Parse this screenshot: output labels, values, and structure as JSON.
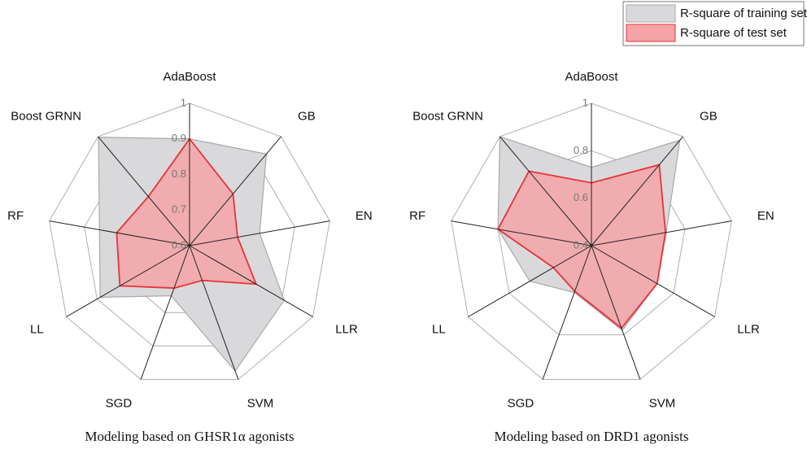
{
  "chart_data": [
    {
      "type": "radar",
      "caption": "Modeling based on GHSR1α agonists",
      "categories": [
        "AdaBoost",
        "GB",
        "EN",
        "LLR",
        "SVM",
        "SGD",
        "LL",
        "RF",
        "Boost GRNN"
      ],
      "ylim": [
        0.6,
        1
      ],
      "yticks": [
        0.6,
        0.7,
        0.8,
        0.9,
        1
      ],
      "series": [
        {
          "name": "R-square of training set",
          "color": "#a9a9ab",
          "fill": "#d9d9db",
          "values": [
            0.9,
            0.936,
            0.8,
            0.907,
            0.975,
            0.75,
            0.89,
            0.857,
            0.998
          ]
        },
        {
          "name": "R-square of test set",
          "color": "#e8333a",
          "fill": "#f4a3a7",
          "values": [
            0.9,
            0.79,
            0.737,
            0.816,
            0.704,
            0.727,
            0.826,
            0.808,
            0.78
          ]
        }
      ]
    },
    {
      "type": "radar",
      "caption": "Modeling based on DRD1 agonists",
      "categories": [
        "AdaBoost",
        "GB",
        "EN",
        "LLR",
        "SVM",
        "SGD",
        "LL",
        "RF",
        "Boost GRNN"
      ],
      "ylim": [
        0.4,
        1
      ],
      "yticks": [
        0.4,
        0.6,
        0.8,
        1
      ],
      "series": [
        {
          "color": "#a9a9ab",
          "fill": "#d9d9db",
          "values": [
            0.73,
            0.98,
            0.72,
            0.72,
            0.78,
            0.61,
            0.7,
            0.8,
            1.0
          ]
        },
        {
          "color": "#e8333a",
          "fill": "#f4a3a7",
          "values": [
            0.665,
            0.845,
            0.717,
            0.72,
            0.77,
            0.605,
            0.585,
            0.8,
            0.81
          ]
        }
      ]
    }
  ]
}
